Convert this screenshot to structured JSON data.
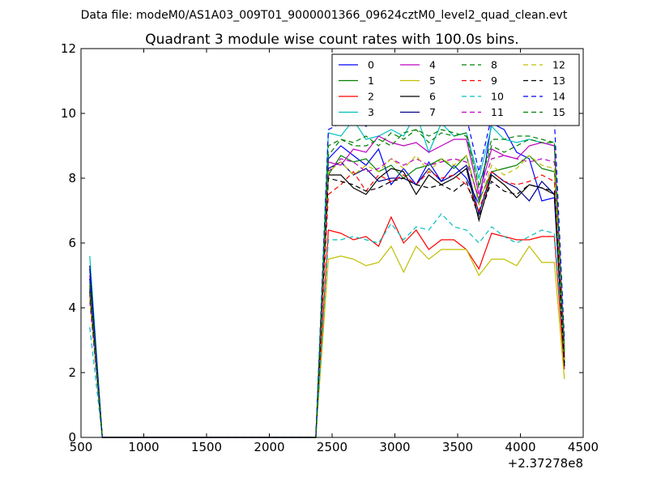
{
  "chart_data": {
    "type": "line",
    "suptitle": "Data file: modeM0/AS1A03_009T01_9000001366_09624cztM0_level2_quad_clean.evt",
    "title": "Quadrant 3 module wise count rates with 100.0s bins.",
    "xlabel": "",
    "ylabel": "",
    "x_offset_label": "+2.37278e8",
    "xlim": [
      500,
      4500
    ],
    "ylim": [
      0,
      12
    ],
    "xticks": [
      500,
      1000,
      1500,
      2000,
      2500,
      3000,
      3500,
      4000,
      4500
    ],
    "yticks": [
      0,
      2,
      4,
      6,
      8,
      10,
      12
    ],
    "legend_location": "upper right",
    "legend_columns": 4,
    "x": [
      570,
      670,
      770,
      870,
      970,
      1070,
      1170,
      1270,
      1370,
      1470,
      1570,
      1670,
      1770,
      1870,
      1970,
      2070,
      2170,
      2270,
      2370,
      2470,
      2570,
      2670,
      2770,
      2870,
      2970,
      3070,
      3170,
      3270,
      3370,
      3470,
      3570,
      3670,
      3770,
      3870,
      3970,
      4070,
      4170,
      4270,
      4350
    ],
    "series": [
      {
        "name": "0",
        "color": "#0000ff",
        "dash": "solid",
        "start": 5.2,
        "active": [
          8.6,
          9.0,
          8.7,
          8.4,
          8.9,
          7.8,
          8.3,
          7.8,
          8.5,
          7.9,
          8.4,
          8.0,
          7.2,
          9.7,
          9.5,
          8.8,
          8.6,
          7.3,
          7.4,
          2.2
        ]
      },
      {
        "name": "1",
        "color": "#008000",
        "dash": "solid",
        "start": 4.9,
        "active": [
          8.1,
          8.7,
          8.5,
          8.6,
          8.2,
          8.4,
          8.0,
          8.3,
          8.4,
          8.6,
          8.3,
          8.7,
          7.3,
          8.2,
          8.3,
          8.4,
          8.7,
          8.3,
          8.2,
          2.3
        ]
      },
      {
        "name": "2",
        "color": "#ff0000",
        "dash": "solid",
        "start": 4.7,
        "active": [
          6.4,
          6.3,
          6.1,
          6.2,
          5.9,
          6.8,
          6.0,
          6.4,
          5.8,
          6.1,
          6.1,
          5.8,
          5.2,
          6.3,
          6.2,
          6.1,
          6.1,
          6.2,
          6.2,
          2.1
        ]
      },
      {
        "name": "3",
        "color": "#00bfbf",
        "dash": "solid",
        "start": 5.6,
        "active": [
          9.4,
          9.3,
          9.8,
          9.2,
          9.3,
          9.5,
          9.3,
          10.0,
          8.8,
          9.7,
          9.3,
          9.4,
          8.0,
          9.6,
          9.2,
          9.1,
          9.2,
          9.1,
          9.0,
          2.8
        ]
      },
      {
        "name": "4",
        "color": "#bf00bf",
        "dash": "solid",
        "start": 5.0,
        "active": [
          8.5,
          8.4,
          8.9,
          8.8,
          9.3,
          9.1,
          9.0,
          9.1,
          8.8,
          9.0,
          9.2,
          9.2,
          7.5,
          8.9,
          8.7,
          8.6,
          9.0,
          9.1,
          9.0,
          2.6
        ]
      },
      {
        "name": "5",
        "color": "#bfbf00",
        "dash": "solid",
        "start": 4.5,
        "active": [
          5.5,
          5.6,
          5.5,
          5.3,
          5.4,
          5.9,
          5.1,
          5.9,
          5.5,
          5.8,
          5.8,
          5.8,
          5.0,
          5.5,
          5.5,
          5.3,
          5.9,
          5.4,
          5.4,
          1.8
        ]
      },
      {
        "name": "6",
        "color": "#000000",
        "dash": "solid",
        "start": 4.6,
        "active": [
          8.1,
          8.1,
          7.7,
          7.5,
          8.0,
          8.3,
          8.2,
          7.5,
          8.1,
          7.8,
          8.0,
          8.3,
          6.7,
          8.1,
          7.8,
          7.4,
          7.8,
          7.7,
          7.5,
          2.2
        ]
      },
      {
        "name": "7",
        "color": "#00008b",
        "dash": "solid",
        "start": 5.3,
        "active": [
          8.3,
          8.5,
          8.1,
          8.3,
          7.9,
          8.0,
          8.0,
          7.8,
          8.3,
          7.9,
          8.1,
          8.4,
          6.9,
          8.2,
          7.9,
          7.7,
          7.3,
          7.9,
          7.5,
          2.4
        ]
      },
      {
        "name": "8",
        "color": "#008000",
        "dash": "dashed",
        "start": 4.8,
        "active": [
          8.7,
          9.2,
          9.0,
          9.0,
          9.2,
          9.0,
          9.4,
          9.5,
          9.3,
          9.5,
          9.4,
          9.3,
          7.8,
          9.0,
          8.8,
          9.0,
          9.2,
          9.1,
          9.1,
          2.7
        ]
      },
      {
        "name": "9",
        "color": "#ff0000",
        "dash": "dashed",
        "start": 4.4,
        "active": [
          7.5,
          7.8,
          8.2,
          7.6,
          8.1,
          7.9,
          8.1,
          7.8,
          8.2,
          8.0,
          8.1,
          7.8,
          7.0,
          8.2,
          7.9,
          7.8,
          7.9,
          8.1,
          7.9,
          2.5
        ]
      },
      {
        "name": "10",
        "color": "#00bfbf",
        "dash": "dashed",
        "start": 3.4,
        "active": [
          6.1,
          6.1,
          6.2,
          6.1,
          6.0,
          6.6,
          6.1,
          6.5,
          6.4,
          6.9,
          6.5,
          6.4,
          6.0,
          6.5,
          6.2,
          6.0,
          6.2,
          6.4,
          6.3,
          2.6
        ]
      },
      {
        "name": "11",
        "color": "#bf00bf",
        "dash": "dashed",
        "start": 4.2,
        "active": [
          8.2,
          8.6,
          8.5,
          8.2,
          8.3,
          8.6,
          8.4,
          8.6,
          8.4,
          8.5,
          8.6,
          8.5,
          7.4,
          8.6,
          8.7,
          8.6,
          8.5,
          8.6,
          8.5,
          2.4
        ]
      },
      {
        "name": "12",
        "color": "#bfbf00",
        "dash": "dashed",
        "start": 4.3,
        "active": [
          8.2,
          8.5,
          8.1,
          8.4,
          8.2,
          8.6,
          8.3,
          8.7,
          8.2,
          8.6,
          8.4,
          8.7,
          7.2,
          8.4,
          8.1,
          8.3,
          8.7,
          8.4,
          8.3,
          2.3
        ]
      },
      {
        "name": "13",
        "color": "#000000",
        "dash": "dashed",
        "start": 4.5,
        "active": [
          8.0,
          7.9,
          7.8,
          7.6,
          7.7,
          7.9,
          8.0,
          7.8,
          7.7,
          7.8,
          7.6,
          7.9,
          6.8,
          7.9,
          7.6,
          7.5,
          7.8,
          7.7,
          7.6,
          2.3
        ]
      },
      {
        "name": "14",
        "color": "#0000ff",
        "dash": "dashed",
        "start": 4.9,
        "active": [
          9.5,
          9.7,
          9.9,
          9.6,
          9.8,
          10.0,
          9.8,
          10.1,
          9.7,
          10.2,
          10.0,
          9.9,
          8.2,
          9.9,
          10.0,
          9.8,
          9.9,
          9.9,
          9.8,
          3.0
        ]
      },
      {
        "name": "15",
        "color": "#008000",
        "dash": "dashed",
        "start": 4.7,
        "active": [
          9.0,
          9.2,
          9.1,
          9.3,
          9.0,
          9.4,
          9.2,
          9.5,
          9.1,
          9.4,
          9.3,
          9.4,
          7.7,
          9.2,
          9.2,
          9.3,
          9.3,
          9.2,
          9.1,
          2.6
        ]
      }
    ]
  }
}
